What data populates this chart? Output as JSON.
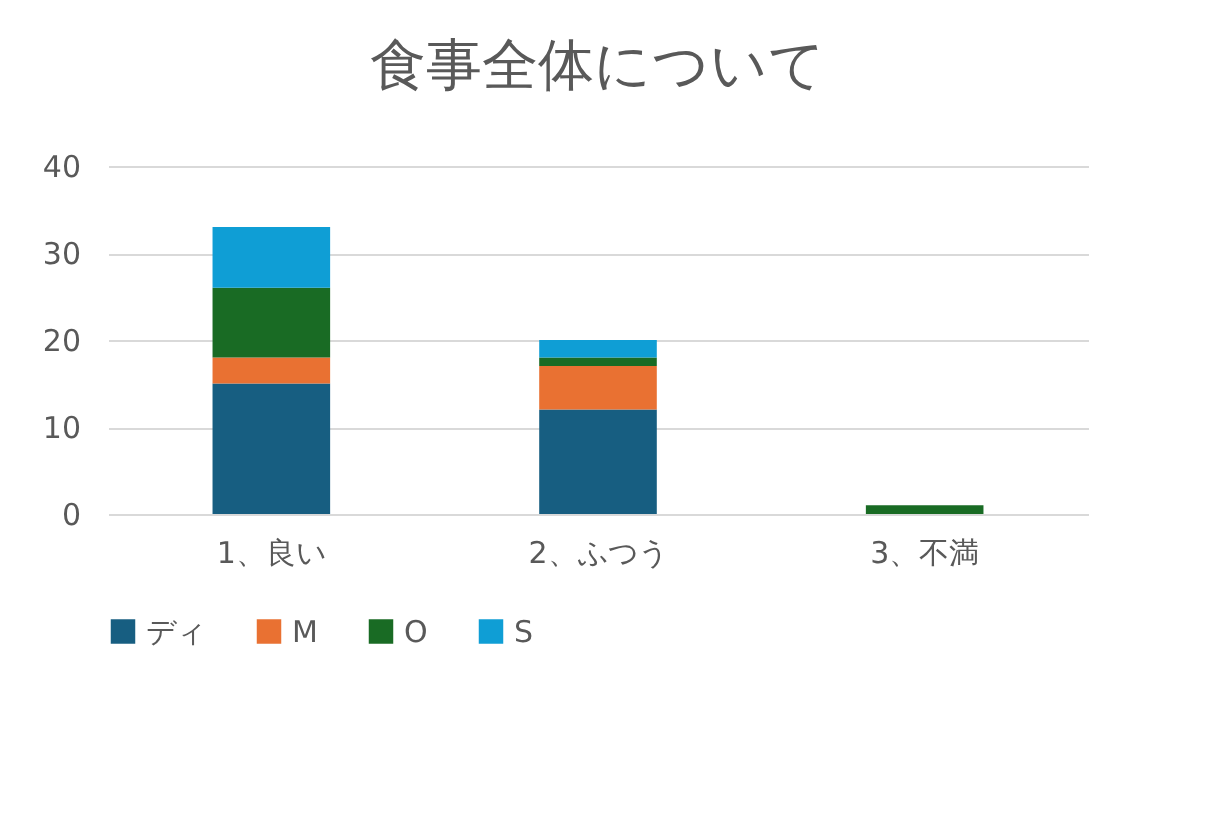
{
  "chart_data": {
    "type": "bar",
    "title": "食事全体について",
    "stacked": true,
    "categories": [
      "1、良い",
      "2、ふつう",
      "3、不満"
    ],
    "series": [
      {
        "name": "ディ",
        "color": "#175e81",
        "values": [
          15,
          12,
          0
        ]
      },
      {
        "name": "M",
        "color": "#e97132",
        "values": [
          3,
          5,
          0
        ]
      },
      {
        "name": "O",
        "color": "#196b24",
        "values": [
          8,
          1,
          1
        ]
      },
      {
        "name": "S",
        "color": "#0f9ed5",
        "values": [
          7,
          2,
          0
        ]
      }
    ],
    "ylim": [
      0,
      40
    ],
    "yticks": [
      0,
      10,
      20,
      30,
      40
    ],
    "grid": "y",
    "legend": "bottom"
  }
}
